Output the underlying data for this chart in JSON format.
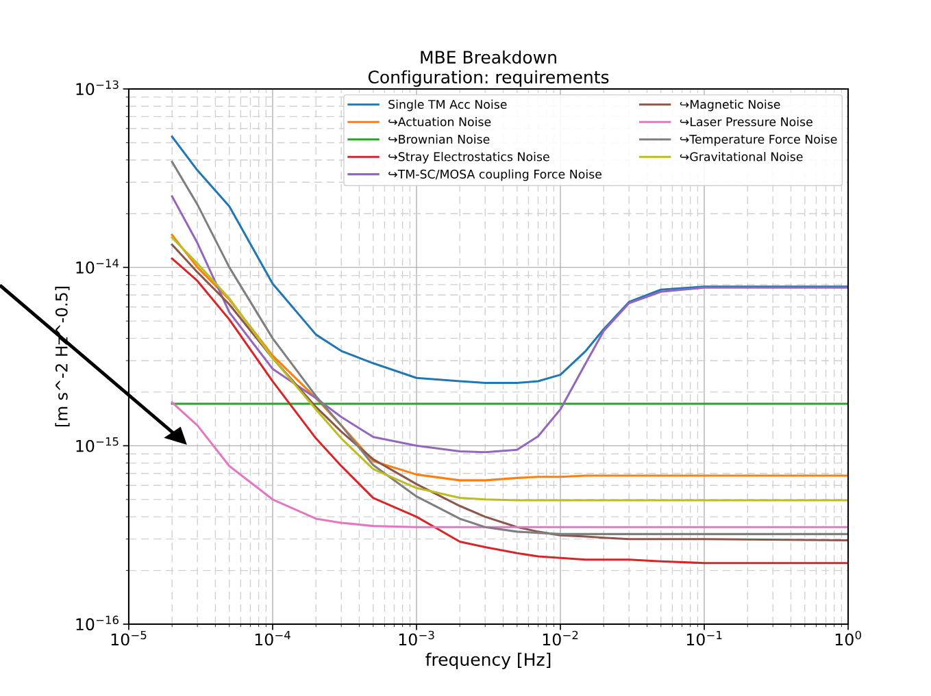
{
  "chart_data": {
    "type": "line",
    "title": "MBE Breakdown\nConfiguration: requirements",
    "xlabel": "frequency [Hz]",
    "ylabel": "[m s^-2 Hz^-0.5]",
    "log": "xy",
    "grid": true,
    "legend": "top right",
    "xlim": [
      1e-05,
      1
    ],
    "ylim": [
      1e-16,
      1e-13
    ],
    "xticks": [
      {
        "value": 1e-05,
        "label": "10$^{−5}$"
      },
      {
        "value": 0.0001,
        "label": "10$^{−4}$"
      },
      {
        "value": 0.001,
        "label": "10$^{−3}$"
      },
      {
        "value": 0.01,
        "label": "10$^{−2}$"
      },
      {
        "value": 0.1,
        "label": "10$^{−1}$"
      },
      {
        "value": 1,
        "label": "10$^{0}$"
      }
    ],
    "yticks": [
      {
        "value": 1e-16,
        "label": "10$^{−16}$"
      },
      {
        "value": 1e-15,
        "label": "10$^{−15}$"
      },
      {
        "value": 1e-14,
        "label": "10$^{−14}$"
      },
      {
        "value": 1e-13,
        "label": "10$^{−13}$"
      }
    ],
    "x": [
      2e-05,
      3e-05,
      5e-05,
      0.0001,
      0.0002,
      0.0003,
      0.0005,
      0.001,
      0.002,
      0.003,
      0.005,
      0.007,
      0.01,
      0.015,
      0.02,
      0.03,
      0.05,
      0.1,
      1
    ],
    "series": [
      {
        "name": "Single TM Acc Noise",
        "color": "#1f77b4",
        "values": [
          5.4e-14,
          3.5e-14,
          2.2e-14,
          8.1e-15,
          4.2e-15,
          3.4e-15,
          2.9e-15,
          2.4e-15,
          2.3e-15,
          2.25e-15,
          2.25e-15,
          2.3e-15,
          2.5e-15,
          3.4e-15,
          4.5e-15,
          6.4e-15,
          7.5e-15,
          7.8e-15,
          7.8e-15
        ]
      },
      {
        "name": "↪Actuation Noise",
        "color": "#ff7f0e",
        "values": [
          1.52e-14,
          1e-14,
          6.6e-15,
          3.2e-15,
          1.85e-15,
          1.3e-15,
          8.2e-16,
          6.9e-16,
          6.4e-16,
          6.4e-16,
          6.6e-16,
          6.7e-16,
          6.7e-16,
          6.8e-16,
          6.8e-16,
          6.8e-16,
          6.8e-16,
          6.8e-16,
          6.8e-16
        ]
      },
      {
        "name": "↪Brownian Noise",
        "color": "#2ca02c",
        "values": [
          1.72e-15,
          1.72e-15,
          1.72e-15,
          1.72e-15,
          1.72e-15,
          1.72e-15,
          1.72e-15,
          1.72e-15,
          1.72e-15,
          1.72e-15,
          1.72e-15,
          1.72e-15,
          1.72e-15,
          1.72e-15,
          1.72e-15,
          1.72e-15,
          1.72e-15,
          1.72e-15,
          1.72e-15
        ]
      },
      {
        "name": "↪Stray Electrostatics Noise",
        "color": "#d62728",
        "values": [
          1.12e-14,
          8.4e-15,
          5.1e-15,
          2.3e-15,
          1.1e-15,
          7.7e-16,
          5.1e-16,
          4e-16,
          2.9e-16,
          2.7e-16,
          2.5e-16,
          2.4e-16,
          2.35e-16,
          2.3e-16,
          2.3e-16,
          2.3e-16,
          2.25e-16,
          2.2e-16,
          2.2e-16
        ]
      },
      {
        "name": "↪TM-SC/MOSA coupling Force Noise",
        "color": "#9467bd",
        "values": [
          2.5e-14,
          1.37e-14,
          5.6e-15,
          2.7e-15,
          1.85e-15,
          1.45e-15,
          1.12e-15,
          1e-15,
          9.3e-16,
          9.2e-16,
          9.5e-16,
          1.13e-15,
          1.6e-15,
          2.9e-15,
          4.4e-15,
          6.3e-15,
          7.3e-15,
          7.7e-15,
          7.7e-15
        ]
      },
      {
        "name": "↪Magnetic Noise",
        "color": "#8c564b",
        "values": [
          1.34e-14,
          9.4e-15,
          6.2e-15,
          3.1e-15,
          1.65e-15,
          1.2e-15,
          8.4e-16,
          6.1e-16,
          4.6e-16,
          4e-16,
          3.5e-16,
          3.3e-16,
          3.15e-16,
          3.1e-16,
          3.05e-16,
          3e-16,
          3e-16,
          3e-16,
          2.95e-16
        ]
      },
      {
        "name": "↪Laser Pressure Noise",
        "color": "#e377c2",
        "values": [
          1.75e-15,
          1.3e-15,
          7.7e-16,
          5e-16,
          3.9e-16,
          3.7e-16,
          3.55e-16,
          3.5e-16,
          3.5e-16,
          3.5e-16,
          3.5e-16,
          3.5e-16,
          3.5e-16,
          3.5e-16,
          3.5e-16,
          3.5e-16,
          3.5e-16,
          3.5e-16,
          3.5e-16
        ]
      },
      {
        "name": "↪Temperature Force Noise",
        "color": "#7f7f7f",
        "values": [
          3.9e-14,
          2.25e-14,
          1e-14,
          4e-15,
          1.9e-15,
          1.3e-15,
          7.8e-16,
          5.2e-16,
          3.9e-16,
          3.5e-16,
          3.3e-16,
          3.25e-16,
          3.2e-16,
          3.2e-16,
          3.2e-16,
          3.2e-16,
          3.2e-16,
          3.2e-16,
          3.2e-16
        ]
      },
      {
        "name": "↪Gravitational Noise",
        "color": "#bcbd22",
        "values": [
          1.47e-14,
          1.05e-14,
          6.7e-15,
          3.1e-15,
          1.6e-15,
          1.1e-15,
          7.4e-16,
          5.8e-16,
          5.1e-16,
          5e-16,
          4.95e-16,
          4.95e-16,
          4.95e-16,
          4.95e-16,
          4.95e-16,
          4.95e-16,
          4.95e-16,
          4.95e-16,
          4.95e-16
        ]
      }
    ]
  }
}
